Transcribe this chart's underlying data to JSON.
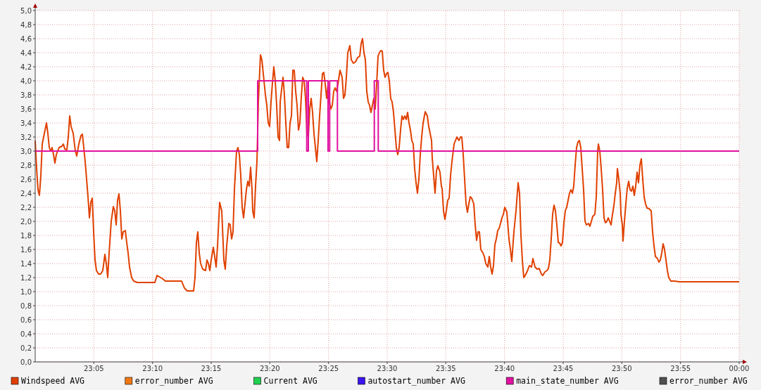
{
  "chart_data": {
    "type": "line",
    "xlim": [
      23,
      24
    ],
    "ylim": [
      0,
      5
    ],
    "xticks": [
      {
        "value": 23.0833,
        "label": "23:05"
      },
      {
        "value": 23.1667,
        "label": "23:10"
      },
      {
        "value": 23.25,
        "label": "23:15"
      },
      {
        "value": 23.3333,
        "label": "23:20"
      },
      {
        "value": 23.4167,
        "label": "23:25"
      },
      {
        "value": 23.5,
        "label": "23:30"
      },
      {
        "value": 23.5833,
        "label": "23:35"
      },
      {
        "value": 23.6667,
        "label": "23:40"
      },
      {
        "value": 23.75,
        "label": "23:45"
      },
      {
        "value": 23.8333,
        "label": "23:50"
      },
      {
        "value": 23.9167,
        "label": "23:55"
      },
      {
        "value": 24,
        "label": "00:00"
      }
    ],
    "yticks": [
      {
        "value": 0,
        "label": "0,0"
      },
      {
        "value": 0.2,
        "label": "0,2"
      },
      {
        "value": 0.4,
        "label": "0,4"
      },
      {
        "value": 0.6,
        "label": "0,6"
      },
      {
        "value": 0.8,
        "label": "0,8"
      },
      {
        "value": 1,
        "label": "1,0"
      },
      {
        "value": 1.2,
        "label": "1,2"
      },
      {
        "value": 1.4,
        "label": "1,4"
      },
      {
        "value": 1.6,
        "label": "1,6"
      },
      {
        "value": 1.8,
        "label": "1,8"
      },
      {
        "value": 2,
        "label": "2,0"
      },
      {
        "value": 2.2,
        "label": "2,2"
      },
      {
        "value": 2.4,
        "label": "2,4"
      },
      {
        "value": 2.6,
        "label": "2,6"
      },
      {
        "value": 2.8,
        "label": "2,8"
      },
      {
        "value": 3,
        "label": "3,0"
      },
      {
        "value": 3.2,
        "label": "3,2"
      },
      {
        "value": 3.4,
        "label": "3,4"
      },
      {
        "value": 3.6,
        "label": "3,6"
      },
      {
        "value": 3.8,
        "label": "3,8"
      },
      {
        "value": 4,
        "label": "4,0"
      },
      {
        "value": 4.2,
        "label": "4,2"
      },
      {
        "value": 4.4,
        "label": "4,4"
      },
      {
        "value": 4.6,
        "label": "4,6"
      },
      {
        "value": 4.8,
        "label": "4,8"
      },
      {
        "value": 5,
        "label": "5,0"
      }
    ],
    "grid": true,
    "legend": "bottom",
    "line_style": "solid",
    "marker": "none",
    "series": [
      {
        "name": "Windspeed AVG",
        "color": "#e04000",
        "x": [
          23.0,
          23.002,
          23.004,
          23.006,
          23.008,
          23.01,
          23.012,
          23.014,
          23.016,
          23.018,
          23.02,
          23.022,
          23.024,
          23.026,
          23.028,
          23.03,
          23.034,
          23.038,
          23.04,
          23.042,
          23.045,
          23.047,
          23.049,
          23.051,
          23.054,
          23.057,
          23.059,
          23.062,
          23.065,
          23.067,
          23.069,
          23.071,
          23.073,
          23.075,
          23.077,
          23.079,
          23.081,
          23.083,
          23.085,
          23.087,
          23.09,
          23.093,
          23.096,
          23.099,
          23.101,
          23.103,
          23.105,
          23.108,
          23.111,
          23.113,
          23.115,
          23.117,
          23.119,
          23.121,
          23.123,
          23.125,
          23.128,
          23.13,
          23.132,
          23.134,
          23.137,
          23.14,
          23.145,
          23.17,
          23.173,
          23.18,
          23.185,
          23.208,
          23.212,
          23.216,
          23.225,
          23.227,
          23.229,
          23.231,
          23.233,
          23.235,
          23.238,
          23.242,
          23.244,
          23.246,
          23.248,
          23.25,
          23.253,
          23.255,
          23.257,
          23.259,
          23.262,
          23.265,
          23.268,
          23.27,
          23.272,
          23.275,
          23.277,
          23.279,
          23.281,
          23.283,
          23.286,
          23.288,
          23.29,
          23.292,
          23.294,
          23.296,
          23.298,
          23.3,
          23.302,
          23.304,
          23.306,
          23.308,
          23.309,
          23.311,
          23.313,
          23.315,
          23.317,
          23.319,
          23.32,
          23.322,
          23.325,
          23.327,
          23.329,
          23.331,
          23.333,
          23.335,
          23.337,
          23.339,
          23.341,
          23.343,
          23.345,
          23.347,
          23.348,
          23.35,
          23.352,
          23.354,
          23.356,
          23.358,
          23.36,
          23.362,
          23.364,
          23.366,
          23.368,
          23.37,
          23.372,
          23.374,
          23.376,
          23.378,
          23.38,
          23.382,
          23.384,
          23.386,
          23.388,
          23.39,
          23.392,
          23.394,
          23.396,
          23.398,
          23.4,
          23.402,
          23.404,
          23.406,
          23.408,
          23.41,
          23.412,
          23.414,
          23.416,
          23.418,
          23.42,
          23.422,
          23.424,
          23.426,
          23.428,
          23.43,
          23.433,
          23.436,
          23.438,
          23.44,
          23.442,
          23.444,
          23.447,
          23.449,
          23.452,
          23.455,
          23.458,
          23.461,
          23.463,
          23.465,
          23.467,
          23.469,
          23.471,
          23.473,
          23.475,
          23.477,
          23.479,
          23.481,
          23.483,
          23.485,
          23.487,
          23.489,
          23.491,
          23.493,
          23.495,
          23.497,
          23.499,
          23.501,
          23.503,
          23.505,
          23.507,
          23.509,
          23.511,
          23.513,
          23.515,
          23.517,
          23.519,
          23.521,
          23.523,
          23.525,
          23.527,
          23.529,
          23.531,
          23.533,
          23.535,
          23.537,
          23.539,
          23.541,
          23.543,
          23.545,
          23.547,
          23.549,
          23.551,
          23.554,
          23.557,
          23.559,
          23.561,
          23.563,
          23.564,
          23.566,
          23.568,
          23.57,
          23.572,
          23.575,
          23.577,
          23.578,
          23.58,
          23.582,
          23.584,
          23.586,
          23.588,
          23.59,
          23.592,
          23.595,
          23.597,
          23.599,
          23.602,
          23.604,
          23.606,
          23.608,
          23.61,
          23.612,
          23.614,
          23.616,
          23.618,
          23.62,
          23.623,
          23.625,
          23.627,
          23.629,
          23.631,
          23.633,
          23.636,
          23.638,
          23.64,
          23.643,
          23.645,
          23.647,
          23.649,
          23.651,
          23.653,
          23.655,
          23.657,
          23.659,
          23.661,
          23.663,
          23.665,
          23.667,
          23.67,
          23.673,
          23.675,
          23.677,
          23.68,
          23.683,
          23.686,
          23.688,
          23.69,
          23.692,
          23.694,
          23.696,
          23.699,
          23.702,
          23.705,
          23.707,
          23.71,
          23.713,
          23.716,
          23.719,
          23.721,
          23.724,
          23.727,
          23.729,
          23.731,
          23.733,
          23.735,
          23.737,
          23.739,
          23.741,
          23.743,
          23.745,
          23.747,
          23.749,
          23.751,
          23.753,
          23.755,
          23.757,
          23.759,
          23.761,
          23.763,
          23.765,
          23.767,
          23.769,
          23.771,
          23.773,
          23.775,
          23.777,
          23.779,
          23.781,
          23.783,
          23.786,
          23.788,
          23.79,
          23.792,
          23.795,
          23.797,
          23.799,
          23.8,
          23.802,
          23.804,
          23.806,
          23.808,
          23.81,
          23.812,
          23.814,
          23.816,
          23.818,
          23.82,
          23.822,
          23.824,
          23.826,
          23.827,
          23.829,
          23.831,
          23.832,
          23.834,
          23.835,
          23.837,
          23.839,
          23.841,
          23.843,
          23.845,
          23.847,
          23.849,
          23.851,
          23.853,
          23.855,
          23.857,
          23.859,
          23.861,
          23.863,
          23.865,
          23.867,
          23.869,
          23.872,
          23.875,
          23.877,
          23.879,
          23.881,
          23.884,
          23.886,
          23.888,
          23.89,
          23.892,
          23.894,
          23.896,
          23.898,
          23.9,
          23.903,
          23.908,
          23.915,
          24.0
        ],
        "values": [
          3.15,
          2.75,
          2.45,
          2.37,
          2.65,
          3.1,
          3.2,
          3.3,
          3.4,
          3.25,
          3.05,
          3.0,
          3.05,
          2.95,
          2.83,
          2.95,
          3.05,
          3.07,
          3.1,
          3.03,
          3.02,
          3.2,
          3.5,
          3.35,
          3.25,
          3.0,
          2.93,
          3.1,
          3.22,
          3.24,
          3.05,
          2.85,
          2.6,
          2.35,
          2.05,
          2.27,
          2.33,
          1.85,
          1.45,
          1.3,
          1.25,
          1.25,
          1.3,
          1.53,
          1.4,
          1.2,
          1.55,
          2.0,
          2.21,
          2.15,
          1.95,
          2.3,
          2.39,
          2.15,
          1.75,
          1.85,
          1.87,
          1.7,
          1.55,
          1.35,
          1.2,
          1.15,
          1.13,
          1.13,
          1.23,
          1.19,
          1.15,
          1.15,
          1.05,
          1.01,
          1.01,
          1.2,
          1.7,
          1.85,
          1.55,
          1.4,
          1.32,
          1.3,
          1.45,
          1.4,
          1.3,
          1.45,
          1.63,
          1.5,
          1.35,
          1.65,
          2.27,
          2.15,
          1.45,
          1.32,
          1.65,
          1.97,
          1.95,
          1.75,
          1.85,
          2.45,
          3.0,
          3.05,
          2.95,
          2.65,
          2.2,
          2.05,
          2.25,
          2.45,
          2.57,
          2.5,
          2.77,
          2.45,
          2.15,
          2.05,
          2.5,
          2.85,
          3.7,
          4.15,
          4.37,
          4.3,
          4.0,
          3.8,
          3.65,
          3.4,
          3.35,
          3.7,
          3.97,
          4.2,
          4.0,
          3.65,
          3.2,
          3.15,
          3.7,
          3.88,
          4.05,
          3.8,
          3.4,
          3.05,
          3.05,
          3.4,
          3.5,
          4.15,
          4.15,
          3.85,
          3.65,
          3.3,
          3.4,
          3.77,
          4.05,
          4.0,
          3.75,
          3.25,
          3.2,
          3.6,
          3.75,
          3.55,
          3.25,
          3.05,
          2.85,
          3.15,
          3.5,
          3.8,
          4.1,
          4.12,
          3.95,
          3.75,
          3.95,
          3.7,
          3.6,
          3.65,
          3.85,
          3.9,
          3.85,
          3.95,
          4.15,
          4.05,
          3.75,
          3.8,
          4.05,
          4.4,
          4.5,
          4.3,
          4.25,
          4.27,
          4.33,
          4.35,
          4.53,
          4.6,
          4.4,
          4.3,
          3.85,
          3.7,
          3.65,
          3.55,
          3.65,
          3.75,
          3.6,
          3.95,
          4.35,
          4.4,
          4.43,
          4.42,
          4.15,
          4.05,
          4.1,
          4.12,
          4.0,
          3.75,
          3.7,
          3.55,
          3.3,
          3.05,
          2.95,
          3.05,
          3.3,
          3.5,
          3.45,
          3.5,
          3.45,
          3.55,
          3.4,
          3.3,
          3.15,
          3.1,
          2.75,
          2.55,
          2.4,
          2.6,
          2.95,
          3.2,
          3.4,
          3.56,
          3.5,
          3.35,
          3.25,
          3.15,
          2.9,
          2.65,
          2.4,
          2.72,
          2.79,
          2.7,
          2.5,
          2.47,
          2.15,
          2.03,
          2.15,
          2.3,
          2.33,
          2.65,
          2.85,
          3.1,
          3.15,
          3.2,
          3.15,
          3.2,
          3.2,
          2.95,
          2.6,
          2.25,
          2.13,
          2.25,
          2.35,
          2.33,
          2.25,
          1.95,
          1.73,
          1.85,
          1.85,
          1.6,
          1.55,
          1.5,
          1.4,
          1.35,
          1.5,
          1.35,
          1.25,
          1.37,
          1.67,
          1.75,
          1.87,
          1.9,
          1.97,
          2.05,
          2.1,
          2.2,
          2.13,
          1.75,
          1.6,
          1.43,
          1.85,
          2.15,
          2.55,
          2.4,
          1.8,
          1.45,
          1.2,
          1.23,
          1.29,
          1.37,
          1.35,
          1.47,
          1.35,
          1.32,
          1.33,
          1.25,
          1.23,
          1.28,
          1.3,
          1.33,
          1.45,
          1.75,
          2.1,
          2.23,
          2.15,
          1.95,
          1.7,
          1.69,
          1.65,
          1.7,
          1.97,
          2.15,
          2.2,
          2.3,
          2.4,
          2.45,
          2.4,
          2.5,
          2.8,
          3.05,
          3.13,
          3.15,
          3.05,
          2.75,
          2.45,
          2.0,
          1.95,
          1.97,
          1.93,
          2.0,
          2.07,
          2.1,
          2.35,
          3.0,
          3.1,
          3.0,
          2.75,
          2.45,
          2.05,
          1.98,
          2.0,
          2.05,
          2.0,
          1.95,
          2.1,
          2.22,
          2.4,
          2.55,
          2.75,
          2.6,
          2.4,
          2.1,
          1.95,
          1.72,
          2.0,
          2.25,
          2.47,
          2.57,
          2.45,
          2.43,
          2.5,
          2.37,
          2.5,
          2.7,
          2.55,
          2.8,
          2.89,
          2.6,
          2.35,
          2.25,
          2.19,
          2.18,
          2.15,
          1.85,
          1.65,
          1.5,
          1.47,
          1.42,
          1.45,
          1.55,
          1.68,
          1.6,
          1.45,
          1.3,
          1.2,
          1.15,
          1.15,
          1.14,
          1.14
        ]
      },
      {
        "name": "error_number AVG",
        "color": "#f07814"
      },
      {
        "name": "Current AVG",
        "color": "#20d050"
      },
      {
        "name": "autostart_number AVG",
        "color": "#3c14f0"
      },
      {
        "name": "main_state_number AVG",
        "color": "#e010a0",
        "type": "step",
        "x": [
          23,
          23.316,
          23.3857,
          23.388,
          23.416,
          23.4183,
          23.4293,
          23.4817,
          23.4873,
          24
        ],
        "values": [
          3,
          4,
          3,
          4,
          3,
          4,
          3,
          4,
          3,
          3
        ]
      },
      {
        "name": "error_number AVG",
        "color": "#505050"
      }
    ]
  }
}
